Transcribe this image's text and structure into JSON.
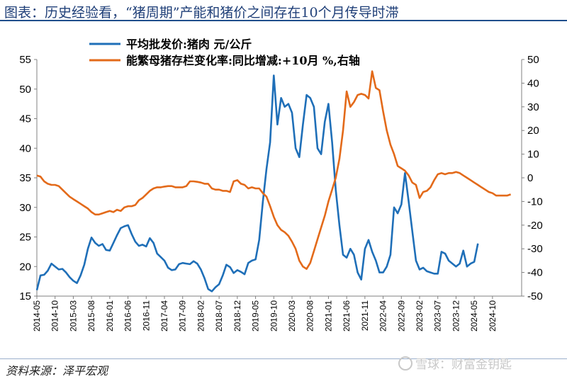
{
  "header": {
    "title": "图表：历史经验看，“猪周期”产能和猪价之间存在10个月传导时滞"
  },
  "footer": {
    "source": "资料来源：泽平宏观",
    "watermark": "雪球：财富金钥匙"
  },
  "colors": {
    "series_price": "#1f6fb8",
    "series_sow": "#e36a1a",
    "title": "#1f3f78",
    "axis": "#808080"
  },
  "chart_data": {
    "type": "line",
    "title": "",
    "x_tick_labels": [
      "2014-05",
      "2014-10",
      "2015-03",
      "2015-08",
      "2016-01",
      "2016-06",
      "2016-11",
      "2017-04",
      "2017-09",
      "2018-02",
      "2018-07",
      "2018-12",
      "2019-05",
      "2019-10",
      "2020-03",
      "2020-08",
      "2021-01",
      "2021-06",
      "2021-11",
      "2022-04",
      "2022-09",
      "2023-02",
      "2023-07",
      "2023-12",
      "2024-05",
      "2024-10"
    ],
    "x_range": [
      "2014-05",
      "2025-06"
    ],
    "y_left": {
      "min": 15,
      "max": 55,
      "ticks": [
        15,
        20,
        25,
        30,
        35,
        40,
        45,
        50,
        55
      ]
    },
    "y_right": {
      "min": -50,
      "max": 50,
      "ticks": [
        -50,
        -40,
        -30,
        -20,
        -10,
        0,
        10,
        20,
        30,
        40,
        50
      ]
    },
    "legend_position": "top-left",
    "grid": false,
    "series": [
      {
        "name": "平均批发价:猪肉 元/公斤",
        "axis": "left",
        "color": "#1f6fb8",
        "points": [
          [
            "2014-05",
            16.0
          ],
          [
            "2014-06",
            18.5
          ],
          [
            "2014-07",
            18.6
          ],
          [
            "2014-08",
            19.3
          ],
          [
            "2014-09",
            20.5
          ],
          [
            "2014-10",
            20.0
          ],
          [
            "2014-11",
            19.5
          ],
          [
            "2014-12",
            19.6
          ],
          [
            "2015-01",
            19.0
          ],
          [
            "2015-02",
            18.2
          ],
          [
            "2015-03",
            17.6
          ],
          [
            "2015-04",
            17.2
          ],
          [
            "2015-05",
            18.5
          ],
          [
            "2015-06",
            20.3
          ],
          [
            "2015-07",
            23.0
          ],
          [
            "2015-08",
            24.9
          ],
          [
            "2015-09",
            24.0
          ],
          [
            "2015-10",
            23.5
          ],
          [
            "2015-11",
            23.8
          ],
          [
            "2015-12",
            22.8
          ],
          [
            "2016-01",
            22.7
          ],
          [
            "2016-02",
            24.0
          ],
          [
            "2016-03",
            25.3
          ],
          [
            "2016-04",
            26.5
          ],
          [
            "2016-05",
            26.8
          ],
          [
            "2016-06",
            27.0
          ],
          [
            "2016-07",
            25.5
          ],
          [
            "2016-08",
            24.2
          ],
          [
            "2016-09",
            23.5
          ],
          [
            "2016-10",
            23.7
          ],
          [
            "2016-11",
            23.4
          ],
          [
            "2016-12",
            24.8
          ],
          [
            "2017-01",
            24.0
          ],
          [
            "2017-02",
            22.2
          ],
          [
            "2017-03",
            21.6
          ],
          [
            "2017-04",
            21.0
          ],
          [
            "2017-05",
            19.8
          ],
          [
            "2017-06",
            19.4
          ],
          [
            "2017-07",
            19.5
          ],
          [
            "2017-08",
            20.4
          ],
          [
            "2017-09",
            20.6
          ],
          [
            "2017-10",
            20.5
          ],
          [
            "2017-11",
            20.4
          ],
          [
            "2017-12",
            20.9
          ],
          [
            "2018-01",
            20.5
          ],
          [
            "2018-02",
            19.5
          ],
          [
            "2018-03",
            18.0
          ],
          [
            "2018-04",
            16.2
          ],
          [
            "2018-05",
            15.8
          ],
          [
            "2018-06",
            16.5
          ],
          [
            "2018-07",
            17.0
          ],
          [
            "2018-08",
            18.5
          ],
          [
            "2018-09",
            20.3
          ],
          [
            "2018-10",
            19.9
          ],
          [
            "2018-11",
            18.9
          ],
          [
            "2018-12",
            19.4
          ],
          [
            "2019-01",
            19.1
          ],
          [
            "2019-02",
            18.7
          ],
          [
            "2019-03",
            20.6
          ],
          [
            "2019-04",
            21.0
          ],
          [
            "2019-05",
            21.2
          ],
          [
            "2019-06",
            24.5
          ],
          [
            "2019-07",
            31.0
          ],
          [
            "2019-08",
            36.5
          ],
          [
            "2019-09",
            41.0
          ],
          [
            "2019-10",
            52.3
          ],
          [
            "2019-11",
            44.0
          ],
          [
            "2019-12",
            48.5
          ],
          [
            "2020-01",
            47.0
          ],
          [
            "2020-02",
            47.5
          ],
          [
            "2020-03",
            46.0
          ],
          [
            "2020-04",
            40.0
          ],
          [
            "2020-05",
            38.5
          ],
          [
            "2020-06",
            44.0
          ],
          [
            "2020-07",
            49.0
          ],
          [
            "2020-08",
            48.5
          ],
          [
            "2020-09",
            47.0
          ],
          [
            "2020-10",
            40.0
          ],
          [
            "2020-11",
            39.0
          ],
          [
            "2020-12",
            44.5
          ],
          [
            "2021-01",
            47.5
          ],
          [
            "2021-02",
            41.0
          ],
          [
            "2021-03",
            33.0
          ],
          [
            "2021-04",
            27.0
          ],
          [
            "2021-05",
            22.0
          ],
          [
            "2021-06",
            21.5
          ],
          [
            "2021-07",
            23.0
          ],
          [
            "2021-08",
            22.0
          ],
          [
            "2021-09",
            19.0
          ],
          [
            "2021-10",
            17.8
          ],
          [
            "2021-11",
            23.0
          ],
          [
            "2021-12",
            24.5
          ],
          [
            "2022-01",
            22.5
          ],
          [
            "2022-02",
            21.0
          ],
          [
            "2022-03",
            19.0
          ],
          [
            "2022-04",
            19.0
          ],
          [
            "2022-05",
            20.0
          ],
          [
            "2022-06",
            22.0
          ],
          [
            "2022-07",
            30.0
          ],
          [
            "2022-08",
            29.0
          ],
          [
            "2022-09",
            30.5
          ],
          [
            "2022-10",
            35.8
          ],
          [
            "2022-11",
            31.0
          ],
          [
            "2022-12",
            26.0
          ],
          [
            "2023-01",
            21.0
          ],
          [
            "2023-02",
            19.5
          ],
          [
            "2023-03",
            19.8
          ],
          [
            "2023-04",
            19.2
          ],
          [
            "2023-05",
            19.0
          ],
          [
            "2023-06",
            18.8
          ],
          [
            "2023-07",
            18.8
          ],
          [
            "2023-08",
            22.5
          ],
          [
            "2023-09",
            22.2
          ],
          [
            "2023-10",
            21.0
          ],
          [
            "2023-11",
            20.5
          ],
          [
            "2023-12",
            20.0
          ],
          [
            "2024-01",
            20.5
          ],
          [
            "2024-02",
            22.7
          ],
          [
            "2024-03",
            20.0
          ],
          [
            "2024-04",
            20.5
          ],
          [
            "2024-05",
            20.8
          ],
          [
            "2024-06",
            23.9
          ]
        ]
      },
      {
        "name": "能繁母猪存栏变化率:同比增减:+10月 %,右轴",
        "axis": "right",
        "color": "#e36a1a",
        "points": [
          [
            "2014-05",
            1.0
          ],
          [
            "2014-06",
            0.5
          ],
          [
            "2014-07",
            -1.5
          ],
          [
            "2014-08",
            -2.5
          ],
          [
            "2014-09",
            -3.0
          ],
          [
            "2014-10",
            -3.0
          ],
          [
            "2014-11",
            -3.5
          ],
          [
            "2014-12",
            -5.0
          ],
          [
            "2015-01",
            -6.5
          ],
          [
            "2015-02",
            -8.0
          ],
          [
            "2015-03",
            -9.0
          ],
          [
            "2015-04",
            -10.0
          ],
          [
            "2015-05",
            -11.0
          ],
          [
            "2015-06",
            -12.0
          ],
          [
            "2015-07",
            -13.0
          ],
          [
            "2015-08",
            -14.5
          ],
          [
            "2015-09",
            -15.5
          ],
          [
            "2015-10",
            -15.5
          ],
          [
            "2015-11",
            -15.0
          ],
          [
            "2015-12",
            -14.5
          ],
          [
            "2016-01",
            -14.0
          ],
          [
            "2016-02",
            -14.5
          ],
          [
            "2016-03",
            -13.5
          ],
          [
            "2016-04",
            -14.0
          ],
          [
            "2016-05",
            -12.5
          ],
          [
            "2016-06",
            -12.0
          ],
          [
            "2016-07",
            -12.0
          ],
          [
            "2016-08",
            -11.5
          ],
          [
            "2016-09",
            -9.5
          ],
          [
            "2016-10",
            -8.5
          ],
          [
            "2016-11",
            -7.0
          ],
          [
            "2016-12",
            -5.5
          ],
          [
            "2017-01",
            -4.5
          ],
          [
            "2017-02",
            -4.0
          ],
          [
            "2017-03",
            -4.0
          ],
          [
            "2017-04",
            -3.7
          ],
          [
            "2017-05",
            -3.5
          ],
          [
            "2017-06",
            -3.5
          ],
          [
            "2017-07",
            -4.0
          ],
          [
            "2017-08",
            -4.0
          ],
          [
            "2017-09",
            -4.0
          ],
          [
            "2017-10",
            -3.5
          ],
          [
            "2017-11",
            -1.5
          ],
          [
            "2017-12",
            -1.5
          ],
          [
            "2018-01",
            -1.7
          ],
          [
            "2018-02",
            -2.0
          ],
          [
            "2018-03",
            -2.5
          ],
          [
            "2018-04",
            -2.5
          ],
          [
            "2018-05",
            -4.5
          ],
          [
            "2018-06",
            -5.0
          ],
          [
            "2018-07",
            -5.0
          ],
          [
            "2018-08",
            -5.5
          ],
          [
            "2018-09",
            -5.5
          ],
          [
            "2018-10",
            -6.0
          ],
          [
            "2018-11",
            -1.5
          ],
          [
            "2018-12",
            -1.0
          ],
          [
            "2019-01",
            -2.5
          ],
          [
            "2019-02",
            -3.0
          ],
          [
            "2019-03",
            -4.5
          ],
          [
            "2019-04",
            -4.0
          ],
          [
            "2019-05",
            -4.5
          ],
          [
            "2019-06",
            -4.5
          ],
          [
            "2019-07",
            -6.5
          ],
          [
            "2019-08",
            -8.0
          ],
          [
            "2019-09",
            -12.0
          ],
          [
            "2019-10",
            -16.5
          ],
          [
            "2019-11",
            -20.0
          ],
          [
            "2019-12",
            -22.0
          ],
          [
            "2020-01",
            -23.0
          ],
          [
            "2020-02",
            -24.5
          ],
          [
            "2020-03",
            -27.0
          ],
          [
            "2020-04",
            -30.0
          ],
          [
            "2020-05",
            -35.0
          ],
          [
            "2020-06",
            -37.5
          ],
          [
            "2020-07",
            -38.5
          ],
          [
            "2020-08",
            -36.0
          ],
          [
            "2020-09",
            -31.0
          ],
          [
            "2020-10",
            -26.0
          ],
          [
            "2020-11",
            -21.0
          ],
          [
            "2020-12",
            -16.0
          ],
          [
            "2021-01",
            -10.0
          ],
          [
            "2021-02",
            -5.0
          ],
          [
            "2021-03",
            0.0
          ],
          [
            "2021-04",
            8.0
          ],
          [
            "2021-05",
            20.0
          ],
          [
            "2021-06",
            36.5
          ],
          [
            "2021-07",
            30.0
          ],
          [
            "2021-08",
            32.0
          ],
          [
            "2021-09",
            35.0
          ],
          [
            "2021-10",
            35.5
          ],
          [
            "2021-11",
            35.0
          ],
          [
            "2021-12",
            33.5
          ],
          [
            "2022-01",
            45.0
          ],
          [
            "2022-02",
            38.0
          ],
          [
            "2022-03",
            37.0
          ],
          [
            "2022-04",
            28.0
          ],
          [
            "2022-05",
            20.0
          ],
          [
            "2022-06",
            14.0
          ],
          [
            "2022-07",
            10.0
          ],
          [
            "2022-08",
            5.0
          ],
          [
            "2022-09",
            4.0
          ],
          [
            "2022-10",
            3.0
          ],
          [
            "2022-11",
            1.0
          ],
          [
            "2022-12",
            -2.0
          ],
          [
            "2023-01",
            -3.0
          ],
          [
            "2023-02",
            -8.5
          ],
          [
            "2023-03",
            -6.0
          ],
          [
            "2023-04",
            -5.5
          ],
          [
            "2023-05",
            -4.0
          ],
          [
            "2023-06",
            -1.0
          ],
          [
            "2023-07",
            1.5
          ],
          [
            "2023-08",
            2.0
          ],
          [
            "2023-09",
            1.5
          ],
          [
            "2023-10",
            2.0
          ],
          [
            "2023-11",
            2.0
          ],
          [
            "2023-12",
            2.5
          ],
          [
            "2024-01",
            2.0
          ],
          [
            "2024-02",
            1.0
          ],
          [
            "2024-03",
            0.0
          ],
          [
            "2024-04",
            -1.0
          ],
          [
            "2024-05",
            -2.0
          ],
          [
            "2024-06",
            -3.0
          ],
          [
            "2024-07",
            -4.0
          ],
          [
            "2024-08",
            -5.0
          ],
          [
            "2024-09",
            -6.0
          ],
          [
            "2024-10",
            -6.5
          ],
          [
            "2024-11",
            -7.5
          ],
          [
            "2024-12",
            -7.5
          ],
          [
            "2025-01",
            -7.5
          ],
          [
            "2025-02",
            -7.5
          ],
          [
            "2025-03",
            -7.0
          ]
        ]
      }
    ]
  }
}
